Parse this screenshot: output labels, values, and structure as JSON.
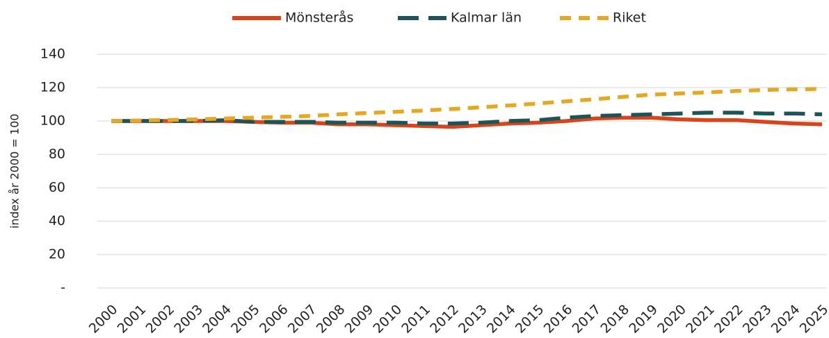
{
  "chart_data": {
    "type": "line",
    "y_label": "index år 2000 = 100",
    "categories": [
      "2000",
      "2001",
      "2002",
      "2003",
      "2004",
      "2005",
      "2006",
      "2007",
      "2008",
      "2009",
      "2010",
      "2011",
      "2012",
      "2013",
      "2014",
      "2015",
      "2016",
      "2017",
      "2018",
      "2019",
      "2020",
      "2021",
      "2022",
      "2023",
      "2024",
      "2025"
    ],
    "series": [
      {
        "name": "Mönsterås",
        "color": "#d9441a",
        "style": "solid",
        "values": [
          100,
          100,
          100,
          100,
          100,
          99.5,
          99,
          99,
          98,
          98,
          97.5,
          97,
          96.5,
          97.5,
          98.5,
          99,
          100,
          101.5,
          102,
          102,
          101,
          100.5,
          100.5,
          99.5,
          98.5,
          98
        ]
      },
      {
        "name": "Kalmar län",
        "color": "#1d5457",
        "style": "longdash",
        "values": [
          100,
          100,
          100,
          100,
          100.5,
          99.5,
          99.5,
          99.5,
          99,
          99,
          99,
          98.5,
          98.5,
          99,
          100,
          100.5,
          102,
          103,
          103.5,
          104,
          104.5,
          105,
          105,
          104.5,
          104.5,
          104
        ]
      },
      {
        "name": "Riket",
        "color": "#e5a825",
        "style": "dash",
        "values": [
          100,
          100.3,
          100.6,
          101,
          101.5,
          102,
          102.5,
          103,
          104,
          104.8,
          105.5,
          106.3,
          107.2,
          108.2,
          109.3,
          110.5,
          111.8,
          113,
          114.5,
          115.8,
          116.5,
          117.2,
          118,
          118.6,
          119,
          119.2
        ]
      }
    ],
    "ylim": [
      0,
      140
    ],
    "yticks": [
      {
        "value": 0,
        "label": "-"
      },
      20,
      40,
      60,
      80,
      100,
      120,
      140
    ],
    "grid": true,
    "legend": "top"
  }
}
